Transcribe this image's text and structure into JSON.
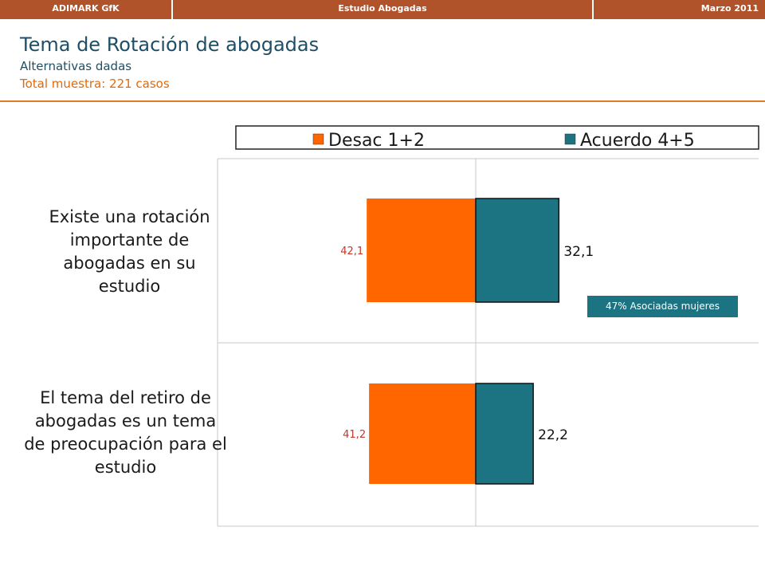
{
  "header": {
    "left": "ADIMARK GfK",
    "center": "Estudio Abogadas",
    "right": "Marzo 2011"
  },
  "page": {
    "title": "Tema de Rotación de abogadas",
    "subtitle": "Alternativas dadas",
    "sample": "Total muestra: 221 casos"
  },
  "colors": {
    "header_bg": "#b0522a",
    "disagree": "#ff6600",
    "agree": "#1c7382",
    "title": "#1f4f66",
    "accent": "#e06a0c"
  },
  "chart_data": {
    "type": "bar",
    "orientation": "horizontal-diverging",
    "categories": [
      "Existe una rotación importante de abogadas en su estudio",
      "El tema del retiro de abogadas es un tema de preocupación para el estudio"
    ],
    "series": [
      {
        "name": "Desac 1+2",
        "values": [
          42.1,
          41.2
        ],
        "labels": [
          "42,1",
          "41,2"
        ],
        "color": "#ff6600",
        "side": "left"
      },
      {
        "name": "Acuerdo 4+5",
        "values": [
          32.1,
          22.2
        ],
        "labels": [
          "32,1",
          "22,2"
        ],
        "color": "#1c7382",
        "side": "right"
      }
    ],
    "legend": {
      "placement": "top"
    },
    "grid": true,
    "annotations": [
      {
        "text": "47% Asociadas mujeres",
        "category_index": 0
      }
    ]
  }
}
